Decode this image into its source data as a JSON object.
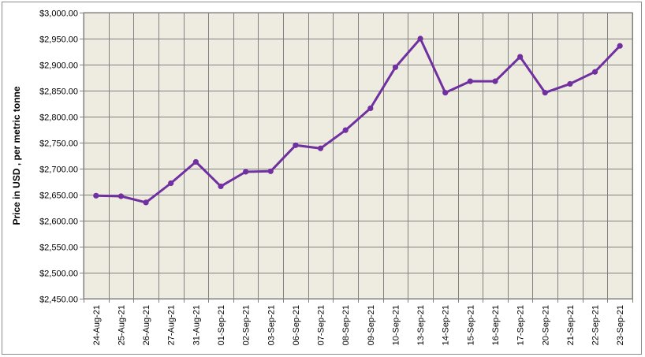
{
  "chart_data": {
    "type": "line",
    "title": "",
    "xlabel": "",
    "ylabel": "Price in USD , per metric tonne",
    "ylim": [
      2450,
      3000
    ],
    "y_tick_step": 50,
    "y_tick_labels": [
      "$2,450.00",
      "$2,500.00",
      "$2,550.00",
      "$2,600.00",
      "$2,650.00",
      "$2,700.00",
      "$2,750.00",
      "$2,800.00",
      "$2,850.00",
      "$2,900.00",
      "$2,950.00",
      "$3,000.00"
    ],
    "grid": true,
    "legend": "none",
    "colors": {
      "line": "#7030a0",
      "plot_bg": "#eeece1",
      "grid": "#808080"
    },
    "categories": [
      "24-Aug-21",
      "25-Aug-21",
      "26-Aug-21",
      "27-Aug-21",
      "31-Aug-21",
      "01-Sep-21",
      "02-Sep-21",
      "03-Sep-21",
      "06-Sep-21",
      "07-Sep-21",
      "08-Sep-21",
      "09-Sep-21",
      "10-Sep-21",
      "13-Sep-21",
      "14-Sep-21",
      "15-Sep-21",
      "16-Sep-21",
      "17-Sep-21",
      "20-Sep-21",
      "21-Sep-21",
      "22-Sep-21",
      "23-Sep-21"
    ],
    "series": [
      {
        "values": [
          2648,
          2647,
          2635,
          2672,
          2713,
          2666,
          2694,
          2695,
          2745,
          2739,
          2774,
          2816,
          2895,
          2950,
          2846,
          2868,
          2868,
          2915,
          2846,
          2863,
          2886,
          2936
        ]
      }
    ]
  }
}
